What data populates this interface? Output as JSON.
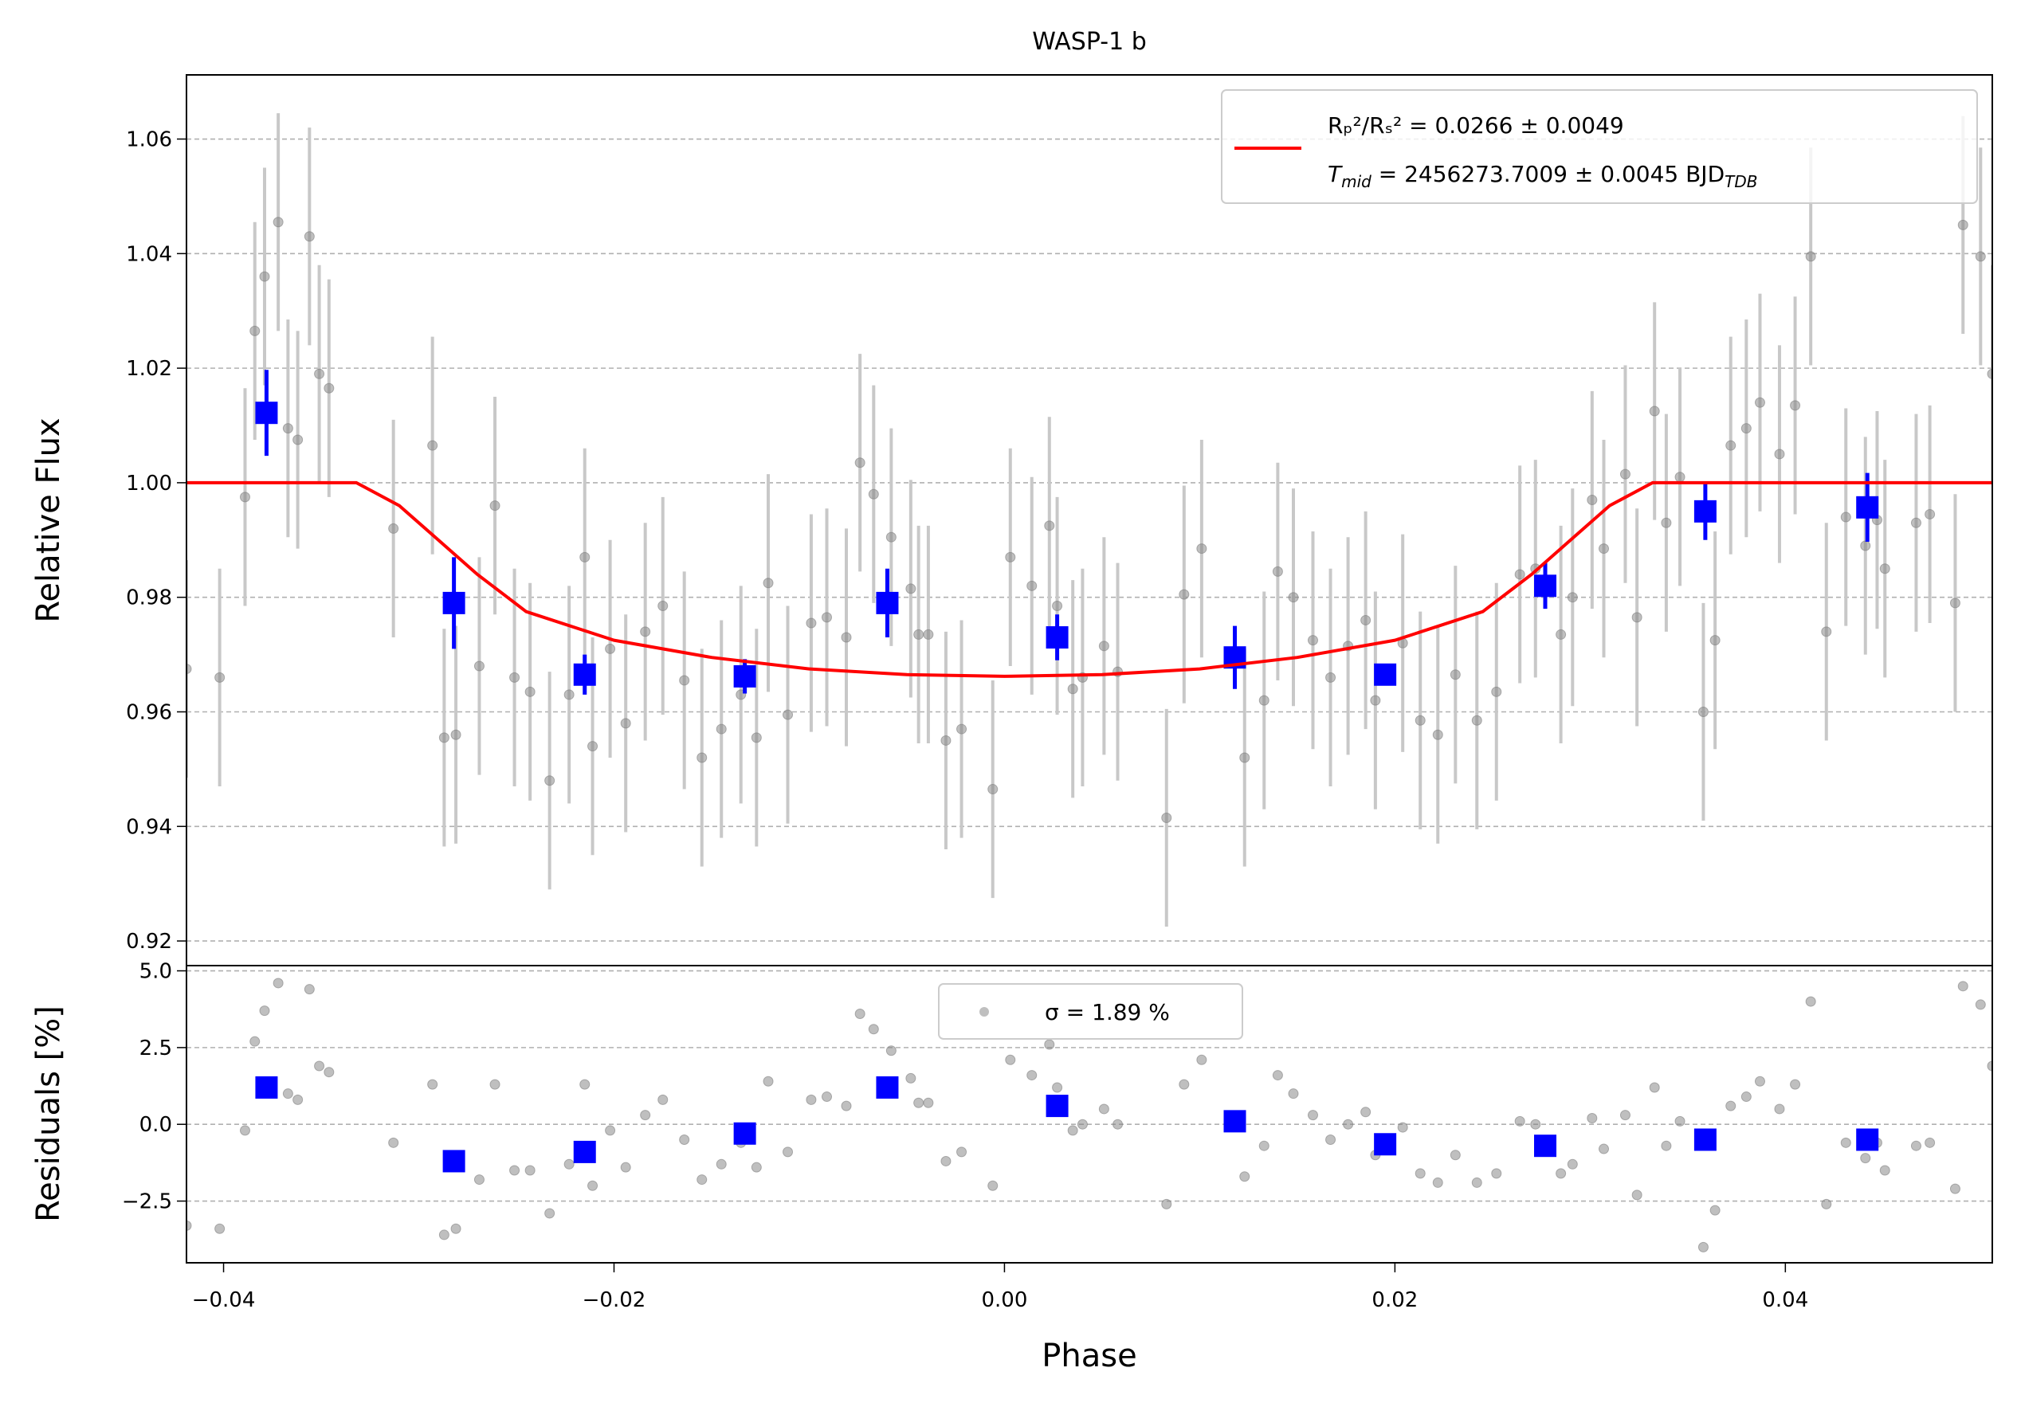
{
  "chart_data": [
    {
      "type": "scatter",
      "title": "WASP-1 b",
      "ylabel": "Relative Flux",
      "grid": true,
      "legend_loc": "upper right",
      "ylim": [
        0.9157,
        1.0712
      ],
      "yticks": [
        0.92,
        0.94,
        0.96,
        0.98,
        {
          "value": 1.0,
          "label": "1.00"
        },
        1.02,
        1.04,
        1.06
      ],
      "series": [
        {
          "color": "#808080",
          "error_color": "#c8c8c8",
          "x": [
            -0.0419,
            -0.0402,
            -0.0389,
            -0.0384,
            -0.0379,
            -0.0372,
            -0.0367,
            -0.0362,
            -0.0356,
            -0.0351,
            -0.0346,
            -0.0313,
            -0.0293,
            -0.0287,
            -0.0281,
            -0.0269,
            -0.0261,
            -0.0251,
            -0.0243,
            -0.0233,
            -0.0223,
            -0.0215,
            -0.0211,
            -0.0202,
            -0.0194,
            -0.0184,
            -0.0175,
            -0.0164,
            -0.0155,
            -0.0145,
            -0.0135,
            -0.0127,
            -0.0121,
            -0.0111,
            -0.0099,
            -0.0091,
            -0.0081,
            -0.0074,
            -0.0067,
            -0.0058,
            -0.0048,
            -0.0044,
            -0.0039,
            -0.003,
            -0.0022,
            -0.0006,
            0.0003,
            0.0014,
            0.0023,
            0.0027,
            0.0035,
            0.004,
            0.0051,
            0.0058,
            0.0083,
            0.0092,
            0.0101,
            0.0123,
            0.0133,
            0.014,
            0.0148,
            0.0158,
            0.0167,
            0.0176,
            0.0185,
            0.019,
            0.0204,
            0.0213,
            0.0222,
            0.0231,
            0.0242,
            0.0252,
            0.0264,
            0.0272,
            0.0285,
            0.0291,
            0.0301,
            0.0307,
            0.0318,
            0.0324,
            0.0333,
            0.0339,
            0.0346,
            0.0358,
            0.0364,
            0.0372,
            0.038,
            0.0387,
            0.0397,
            0.0405,
            0.0413,
            0.0421,
            0.0431,
            0.0441,
            0.0447,
            0.0451,
            0.0467,
            0.0474,
            0.0487,
            0.0491,
            0.05,
            0.0506
          ],
          "values": [
            0.9675,
            0.966,
            0.9975,
            1.0265,
            1.036,
            1.0455,
            1.0095,
            1.0075,
            1.043,
            1.019,
            1.0165,
            0.992,
            1.0065,
            0.9555,
            0.956,
            0.968,
            0.996,
            0.966,
            0.9635,
            0.948,
            0.963,
            0.987,
            0.954,
            0.971,
            0.958,
            0.974,
            0.9785,
            0.9655,
            0.952,
            0.957,
            0.963,
            0.9555,
            0.9825,
            0.9595,
            0.9755,
            0.9765,
            0.973,
            1.0035,
            0.998,
            0.9905,
            0.9815,
            0.9735,
            0.9735,
            0.955,
            0.957,
            0.9465,
            0.987,
            0.982,
            0.9925,
            0.9785,
            0.964,
            0.966,
            0.9715,
            0.967,
            0.9415,
            0.9805,
            0.9885,
            0.952,
            0.962,
            0.9845,
            0.98,
            0.9725,
            0.966,
            0.9715,
            0.976,
            0.962,
            0.972,
            0.9585,
            0.956,
            0.9665,
            0.9585,
            0.9635,
            0.984,
            0.985,
            0.9735,
            0.98,
            0.997,
            0.9885,
            1.0015,
            0.9765,
            1.0125,
            0.993,
            1.001,
            0.96,
            0.9725,
            1.0065,
            1.0095,
            1.014,
            1.005,
            1.0135,
            1.0395,
            0.974,
            0.994,
            0.989,
            0.9935,
            0.985,
            0.993,
            0.9945,
            0.979,
            1.045,
            1.0395,
            1.019
          ],
          "yerr": 0.019
        },
        {
          "color": "#0000ff",
          "error_color": "#0000ff",
          "marker": "square",
          "x": [
            -0.0378,
            -0.0282,
            -0.0215,
            -0.0133,
            -0.006,
            0.0027,
            0.0118,
            0.0195,
            0.0277,
            0.0359,
            0.0442
          ],
          "values": [
            1.0122,
            0.979,
            0.9665,
            0.9662,
            0.979,
            0.973,
            0.9695,
            0.9665,
            0.982,
            0.995,
            0.9957
          ],
          "yerr": [
            0.0075,
            0.008,
            0.0035,
            0.003,
            0.006,
            0.004,
            0.0055,
            0.001,
            0.004,
            0.005,
            0.006
          ]
        },
        {
          "type": "line",
          "color": "#ff0000",
          "name": "Rₚ²/Rₛ² = 0.0266 ± 0.0049",
          "x": [
            -0.0419,
            -0.0332,
            -0.031,
            -0.029,
            -0.027,
            -0.0245,
            -0.02,
            -0.015,
            -0.01,
            -0.005,
            0,
            0.005,
            0.01,
            0.015,
            0.02,
            0.0245,
            0.027,
            0.029,
            0.031,
            0.0332,
            0.0506
          ],
          "values": [
            1,
            1,
            0.996,
            0.99,
            0.984,
            0.9775,
            0.9725,
            0.9695,
            0.9675,
            0.9665,
            0.9662,
            0.9665,
            0.9675,
            0.9695,
            0.9725,
            0.9775,
            0.984,
            0.99,
            0.996,
            1,
            1
          ]
        }
      ],
      "legend_note": {
        "symbol": "T",
        "symbol_subscript": "mid",
        "text": " = 2456273.7009 ± 0.0045 BJD",
        "unit_subscript": "TDB"
      }
    },
    {
      "type": "scatter",
      "ylabel": "Residuals [%]",
      "xlabel": "Phase",
      "grid": true,
      "legend_loc": "upper center",
      "xlim": [
        -0.0419,
        0.0506
      ],
      "xticks": [
        {
          "value": -0.04,
          "label": "−0.04"
        },
        {
          "value": -0.02,
          "label": "−0.02"
        },
        {
          "value": 0,
          "label": "0.00"
        },
        {
          "value": 0.02,
          "label": "0.02"
        },
        {
          "value": 0.04,
          "label": "0.04"
        }
      ],
      "ylim": [
        -4.51,
        5.17
      ],
      "yticks": [
        {
          "value": -2.5,
          "label": "−2.5"
        },
        {
          "value": 0,
          "label": "0.0"
        },
        2.5,
        {
          "value": 5,
          "label": "5.0"
        }
      ],
      "series": [
        {
          "name": "σ = 1.89 %",
          "color": "#808080",
          "values": [
            -3.3,
            -3.4,
            -0.2,
            2.7,
            3.7,
            4.6,
            1.0,
            0.8,
            4.4,
            1.9,
            1.7,
            -0.6,
            1.3,
            -3.6,
            -3.4,
            -1.8,
            1.3,
            -1.5,
            -1.5,
            -2.9,
            -1.3,
            1.3,
            -2.0,
            -0.2,
            -1.4,
            0.3,
            0.8,
            -0.5,
            -1.8,
            -1.3,
            -0.6,
            -1.4,
            1.4,
            -0.9,
            0.8,
            0.9,
            0.6,
            3.6,
            3.1,
            2.4,
            1.5,
            0.7,
            0.7,
            -1.2,
            -0.9,
            -2.0,
            2.1,
            1.6,
            2.6,
            1.2,
            -0.2,
            0,
            0.5,
            0,
            -2.6,
            1.3,
            2.1,
            -1.7,
            -0.7,
            1.6,
            1.0,
            0.3,
            -0.5,
            0,
            0.4,
            -1.0,
            -0.1,
            -1.6,
            -1.9,
            -1.0,
            -1.9,
            -1.6,
            0.1,
            0,
            -1.6,
            -1.3,
            0.2,
            -0.8,
            0.3,
            -2.3,
            1.2,
            -0.7,
            0.1,
            -4.0,
            -2.8,
            0.6,
            0.9,
            1.4,
            0.5,
            1.3,
            4.0,
            -2.6,
            -0.6,
            -1.1,
            -0.6,
            -1.5,
            -0.7,
            -0.6,
            -2.1,
            4.5,
            3.9,
            1.9
          ]
        },
        {
          "color": "#0000ff",
          "marker": "square",
          "values": [
            1.2,
            -1.2,
            -0.9,
            -0.3,
            1.2,
            0.6,
            0.1,
            -0.65,
            -0.7,
            -0.5,
            -0.5
          ]
        }
      ]
    }
  ]
}
